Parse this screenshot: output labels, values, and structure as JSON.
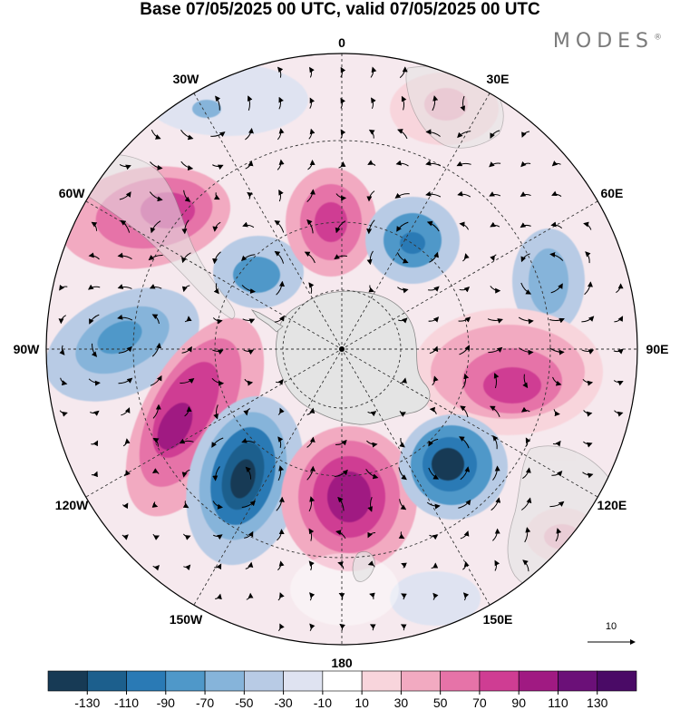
{
  "header": {
    "title": "Base 07/05/2025 00 UTC, valid 07/05/2025 00 UTC",
    "brand": "MODES",
    "brand_mark": "®"
  },
  "map": {
    "projection": "south-polar-stereographic",
    "longitude_labels": [
      {
        "key": "lon-0",
        "text": "0",
        "lon": 0
      },
      {
        "key": "lon-30e",
        "text": "30E",
        "lon": 30
      },
      {
        "key": "lon-60e",
        "text": "60E",
        "lon": 60
      },
      {
        "key": "lon-90e",
        "text": "90E",
        "lon": 90
      },
      {
        "key": "lon-120e",
        "text": "120E",
        "lon": 120
      },
      {
        "key": "lon-150e",
        "text": "150E",
        "lon": 150
      },
      {
        "key": "lon-180",
        "text": "180",
        "lon": 180
      },
      {
        "key": "lon-150w",
        "text": "150W",
        "lon": -150
      },
      {
        "key": "lon-120w",
        "text": "120W",
        "lon": -120
      },
      {
        "key": "lon-90w",
        "text": "90W",
        "lon": -90
      },
      {
        "key": "lon-60w",
        "text": "60W",
        "lon": -60
      },
      {
        "key": "lon-30w",
        "text": "30W",
        "lon": -30
      }
    ],
    "reference_vector": {
      "value": "10"
    },
    "colors": {
      "land": "#e4e4e4",
      "grid": "#333333",
      "coast": "#8a8a8a"
    }
  },
  "colorbar": {
    "tick_labels": [
      "-130",
      "-110",
      "-90",
      "-70",
      "-50",
      "-30",
      "-10",
      "10",
      "30",
      "50",
      "70",
      "90",
      "110",
      "130"
    ],
    "colors": [
      "#173a55",
      "#1c5f8d",
      "#2a7ab5",
      "#4f98c9",
      "#86b4da",
      "#b8cbe5",
      "#dfe3f1",
      "#ffffff",
      "#f8d5dc",
      "#f2aac1",
      "#e673a8",
      "#cf3d93",
      "#a01a82",
      "#6b1078",
      "#4a0a66"
    ]
  }
}
